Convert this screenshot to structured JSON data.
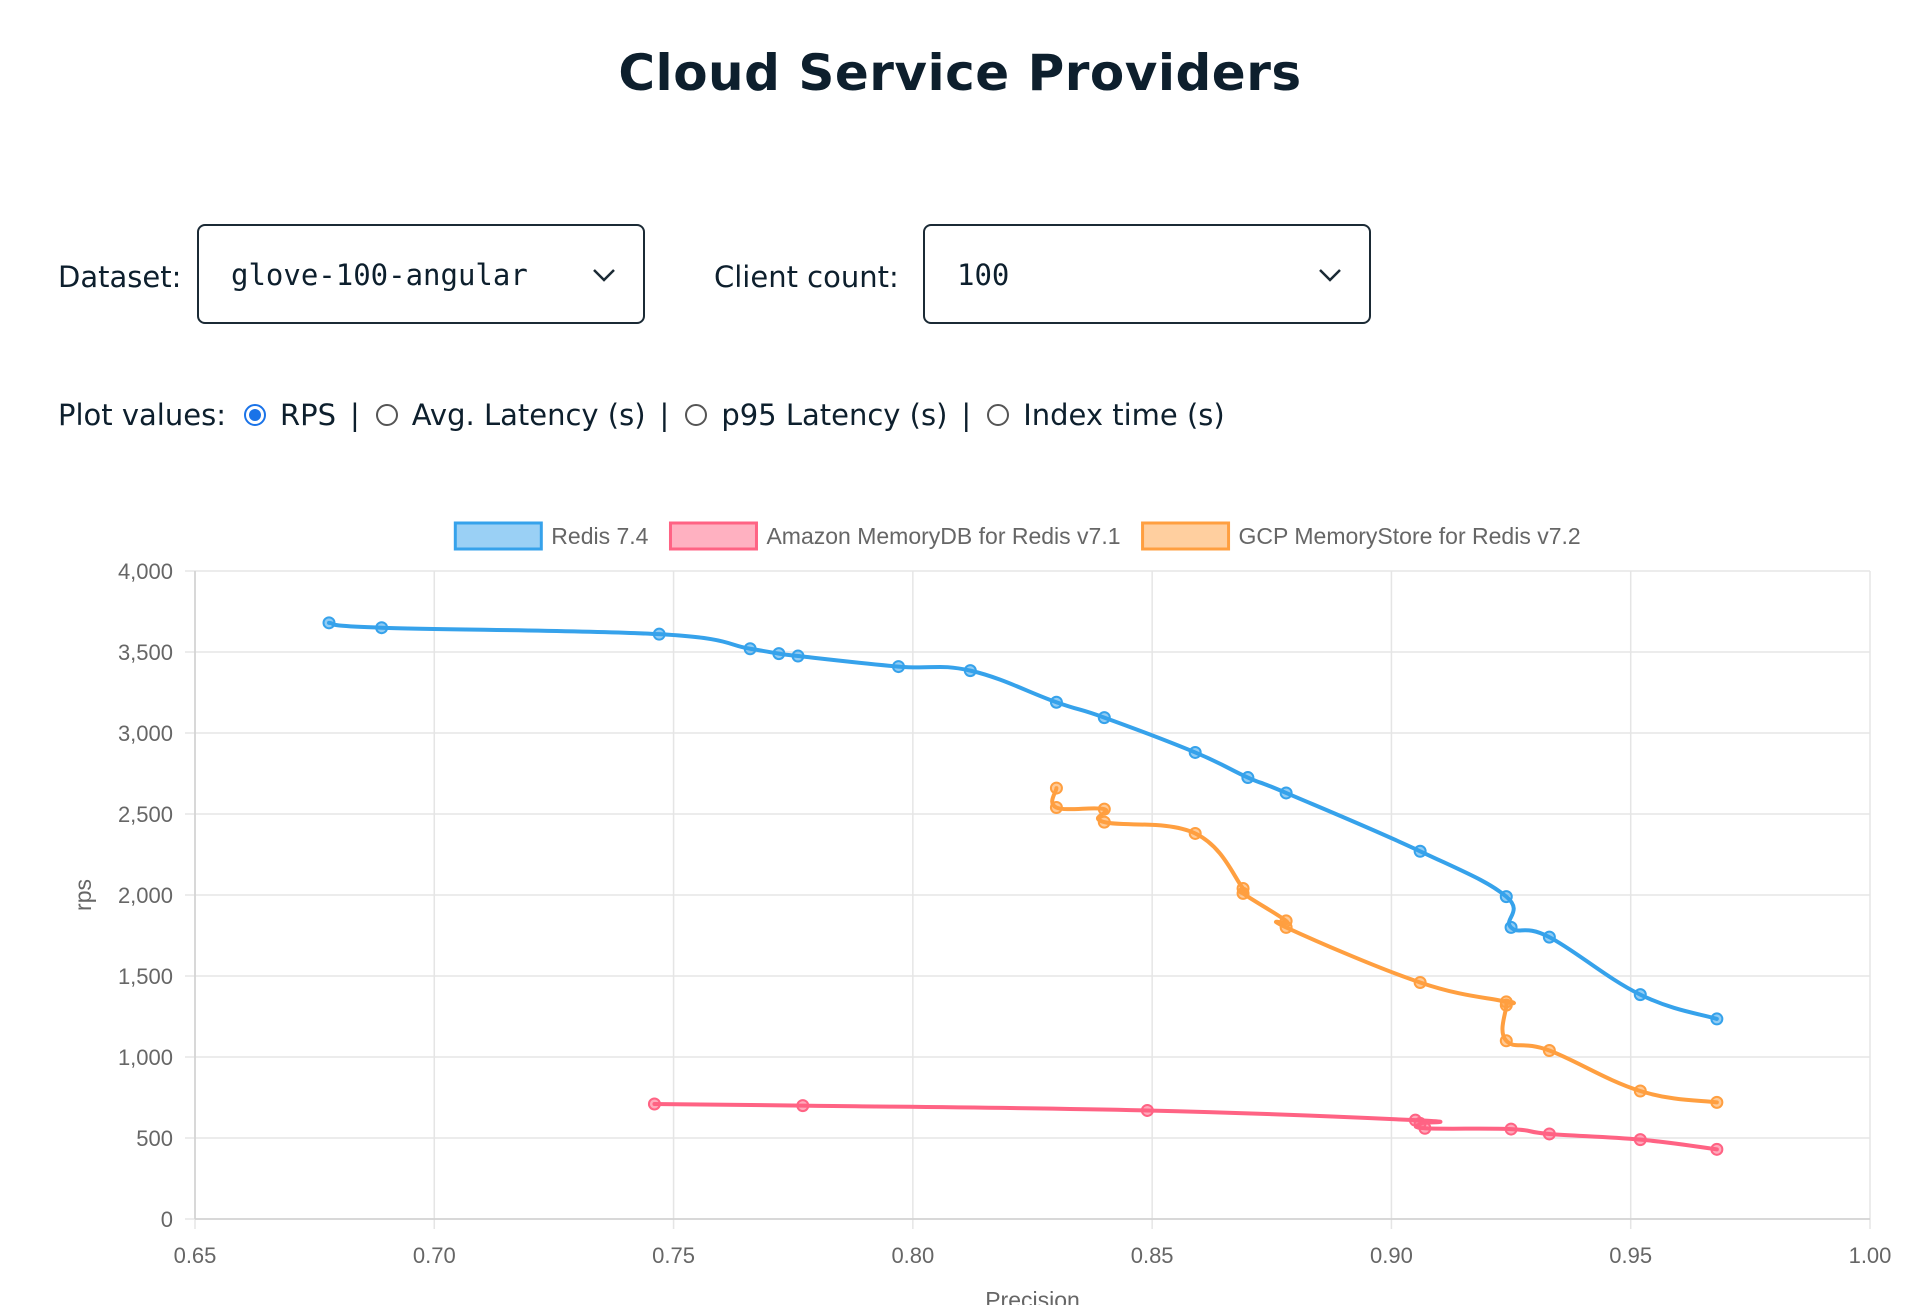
{
  "page": {
    "title": "Cloud Service Providers"
  },
  "controls": {
    "dataset": {
      "label": "Dataset:",
      "value": "glove-100-angular"
    },
    "client_count": {
      "label": "Client count:",
      "value": "100"
    },
    "plot_values": {
      "label": "Plot values:",
      "options": [
        {
          "label": "RPS",
          "selected": true
        },
        {
          "label": "Avg. Latency (s)",
          "selected": false
        },
        {
          "label": "p95 Latency (s)",
          "selected": false
        },
        {
          "label": "Index time (s)",
          "selected": false
        }
      ]
    }
  },
  "chart_data": {
    "type": "line",
    "xlabel": "Precision",
    "ylabel": "rps",
    "xlim": [
      0.65,
      1.0
    ],
    "ylim": [
      0,
      4000
    ],
    "xticks": [
      "0.65",
      "0.70",
      "0.75",
      "0.80",
      "0.85",
      "0.90",
      "0.95",
      "1.00"
    ],
    "yticks": [
      "0",
      "500",
      "1,000",
      "1,500",
      "2,000",
      "2,500",
      "3,000",
      "3,500",
      "4,000"
    ],
    "grid": true,
    "legend_position": "top-center",
    "series": [
      {
        "name": "Redis 7.4",
        "color": "#36a2eb",
        "points": [
          [
            0.678,
            3680
          ],
          [
            0.689,
            3650
          ],
          [
            0.747,
            3610
          ],
          [
            0.766,
            3520
          ],
          [
            0.772,
            3490
          ],
          [
            0.776,
            3475
          ],
          [
            0.797,
            3410
          ],
          [
            0.812,
            3385
          ],
          [
            0.83,
            3190
          ],
          [
            0.84,
            3095
          ],
          [
            0.859,
            2880
          ],
          [
            0.87,
            2725
          ],
          [
            0.878,
            2630
          ],
          [
            0.906,
            2270
          ],
          [
            0.924,
            1990
          ],
          [
            0.925,
            1800
          ],
          [
            0.933,
            1740
          ],
          [
            0.952,
            1385
          ],
          [
            0.968,
            1235
          ]
        ]
      },
      {
        "name": "Amazon MemoryDB for Redis v7.1",
        "color": "#ff6384",
        "points": [
          [
            0.746,
            710
          ],
          [
            0.777,
            700
          ],
          [
            0.849,
            670
          ],
          [
            0.905,
            610
          ],
          [
            0.906,
            590
          ],
          [
            0.907,
            560
          ],
          [
            0.925,
            555
          ],
          [
            0.933,
            525
          ],
          [
            0.952,
            490
          ],
          [
            0.968,
            430
          ]
        ]
      },
      {
        "name": "GCP MemoryStore for Redis v7.2",
        "color": "#ff9f40",
        "points": [
          [
            0.83,
            2660
          ],
          [
            0.83,
            2540
          ],
          [
            0.84,
            2530
          ],
          [
            0.84,
            2450
          ],
          [
            0.859,
            2380
          ],
          [
            0.869,
            2040
          ],
          [
            0.869,
            2010
          ],
          [
            0.878,
            1840
          ],
          [
            0.878,
            1800
          ],
          [
            0.906,
            1460
          ],
          [
            0.924,
            1340
          ],
          [
            0.924,
            1320
          ],
          [
            0.924,
            1100
          ],
          [
            0.933,
            1040
          ],
          [
            0.952,
            790
          ],
          [
            0.968,
            720
          ]
        ]
      }
    ]
  }
}
